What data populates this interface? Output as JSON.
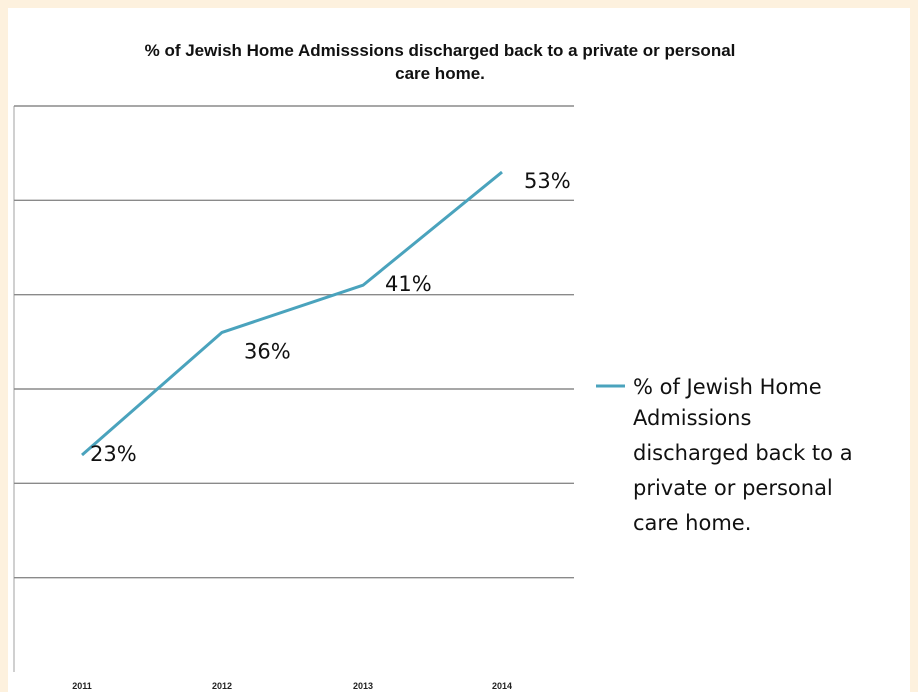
{
  "chart_data": {
    "type": "line",
    "title": "% of Jewish Home Admisssions  discharged back to a private or personal care home.",
    "title_lines": [
      "% of Jewish Home Admisssions  discharged back to a private or personal",
      "care home."
    ],
    "categories": [
      "2011",
      "2012",
      "2013",
      "2014"
    ],
    "series": [
      {
        "name": "% of Jewish Home Admissions discharged back to a private or personal care home.",
        "name_lines": [
          "% of Jewish Home",
          "Admissions",
          "discharged back to a",
          "private or personal",
          "care home."
        ],
        "values": [
          23,
          36,
          41,
          53
        ],
        "data_labels": [
          "23%",
          "36%",
          "41%",
          "53%"
        ],
        "color": "#4aa3bd"
      }
    ],
    "ylim": [
      0,
      60
    ],
    "y_gridlines": [
      10,
      20,
      30,
      40,
      50,
      60
    ],
    "grid": true,
    "legend_position": "right",
    "xlabel": "",
    "ylabel": ""
  }
}
